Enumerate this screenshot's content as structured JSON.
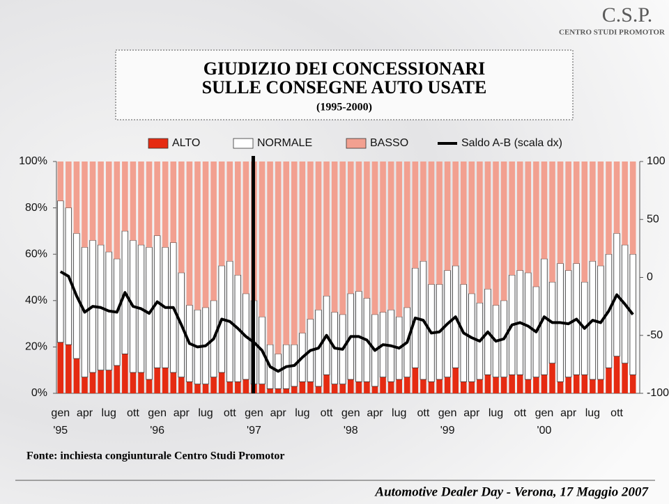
{
  "logo": {
    "title": "C.S.P.",
    "subtitle": "CENTRO STUDI PROMOTOR"
  },
  "source": "Fonte: inchiesta congiunturale Centro Studi Promotor",
  "footer": "Automotive Dealer Day - Verona, 17 Maggio 2007",
  "chart_data": {
    "type": "stacked-bar-line",
    "title": [
      "GIUDIZIO DEI CONCESSIONARI",
      "SULLE CONSEGNE AUTO USATE"
    ],
    "subtitle": "(1995-2000)",
    "categories": [
      "gen",
      null,
      null,
      "apr",
      null,
      null,
      "lug",
      null,
      null,
      "ott",
      null,
      null,
      "gen",
      null,
      null,
      "apr",
      null,
      null,
      "lug",
      null,
      null,
      "ott",
      null,
      null,
      "gen",
      null,
      null,
      "apr",
      null,
      null,
      "lug",
      null,
      null,
      "ott",
      null,
      null,
      "gen",
      null,
      null,
      "apr",
      null,
      null,
      "lug",
      null,
      null,
      "ott",
      null,
      null,
      "gen",
      null,
      null,
      "apr",
      null,
      null,
      "lug",
      null,
      null,
      "ott",
      null,
      null,
      "gen",
      null,
      null,
      "apr",
      null,
      null,
      "lug",
      null,
      null,
      "ott",
      null,
      null
    ],
    "year_labels": [
      "'95",
      "'96",
      "'97",
      "'98",
      "'99",
      "'00"
    ],
    "series": [
      {
        "name": "ALTO",
        "color": "#e52b12",
        "values": [
          22,
          21,
          15,
          7,
          9,
          10,
          10,
          12,
          17,
          9,
          9,
          6,
          11,
          11,
          9,
          7,
          5,
          4,
          4,
          7,
          9,
          5,
          5,
          6,
          4,
          4,
          2,
          2,
          2,
          3,
          5,
          5,
          3,
          8,
          4,
          4,
          6,
          5,
          5,
          3,
          7,
          5,
          6,
          7,
          11,
          6,
          5,
          6,
          7,
          11,
          5,
          5,
          6,
          8,
          7,
          7,
          8,
          8,
          6,
          7,
          8,
          13,
          5,
          7,
          8,
          8,
          6,
          6,
          11,
          16,
          13,
          8
        ]
      },
      {
        "name": "NORMALE",
        "color": "#ffffff",
        "values": [
          61,
          59,
          54,
          56,
          57,
          54,
          51,
          46,
          53,
          57,
          55,
          57,
          57,
          52,
          56,
          45,
          33,
          32,
          33,
          33,
          46,
          52,
          46,
          37,
          36,
          29,
          19,
          15,
          19,
          18,
          21,
          27,
          33,
          34,
          31,
          30,
          37,
          39,
          36,
          31,
          28,
          31,
          27,
          30,
          43,
          51,
          42,
          41,
          46,
          44,
          42,
          38,
          33,
          37,
          31,
          33,
          43,
          45,
          46,
          39,
          50,
          35,
          51,
          46,
          48,
          40,
          51,
          49,
          49,
          53,
          51,
          52
        ]
      },
      {
        "name": "BASSO",
        "color": "#f2a090",
        "values": [
          17,
          20,
          31,
          37,
          34,
          36,
          39,
          42,
          30,
          34,
          36,
          37,
          32,
          37,
          35,
          48,
          62,
          64,
          63,
          60,
          45,
          43,
          49,
          57,
          60,
          67,
          79,
          83,
          79,
          79,
          74,
          68,
          64,
          58,
          65,
          66,
          57,
          56,
          59,
          66,
          65,
          64,
          67,
          63,
          46,
          43,
          53,
          53,
          47,
          45,
          53,
          57,
          61,
          55,
          62,
          60,
          49,
          47,
          48,
          54,
          42,
          52,
          44,
          47,
          44,
          52,
          43,
          45,
          40,
          31,
          36,
          40
        ]
      },
      {
        "name": "Saldo A-B (scala dx)",
        "color": "#000000",
        "axis": "y2",
        "values": [
          5,
          1,
          -16,
          -30,
          -25,
          -26,
          -29,
          -30,
          -13,
          -25,
          -27,
          -31,
          -21,
          -26,
          -26,
          -41,
          -57,
          -60,
          -59,
          -53,
          -36,
          -38,
          -44,
          -51,
          -56,
          -63,
          -77,
          -81,
          -77,
          -76,
          -69,
          -63,
          -61,
          -50,
          -61,
          -62,
          -51,
          -51,
          -54,
          -63,
          -58,
          -59,
          -61,
          -56,
          -35,
          -37,
          -48,
          -47,
          -40,
          -34,
          -48,
          -52,
          -55,
          -47,
          -55,
          -53,
          -41,
          -39,
          -42,
          -47,
          -34,
          -39,
          -39,
          -40,
          -36,
          -44,
          -37,
          -39,
          -29,
          -15,
          -23,
          -32
        ]
      }
    ],
    "ylim": [
      0,
      100
    ],
    "yticks": [
      {
        "value": 0,
        "label": "0%"
      },
      {
        "value": 20,
        "label": "20%"
      },
      {
        "value": 40,
        "label": "40%"
      },
      {
        "value": 60,
        "label": "60%"
      },
      {
        "value": 80,
        "label": "80%"
      },
      {
        "value": 100,
        "label": "100%"
      }
    ],
    "y2lim": [
      -100,
      100
    ],
    "y2ticks": [
      -100,
      -50,
      0,
      50,
      100
    ]
  }
}
